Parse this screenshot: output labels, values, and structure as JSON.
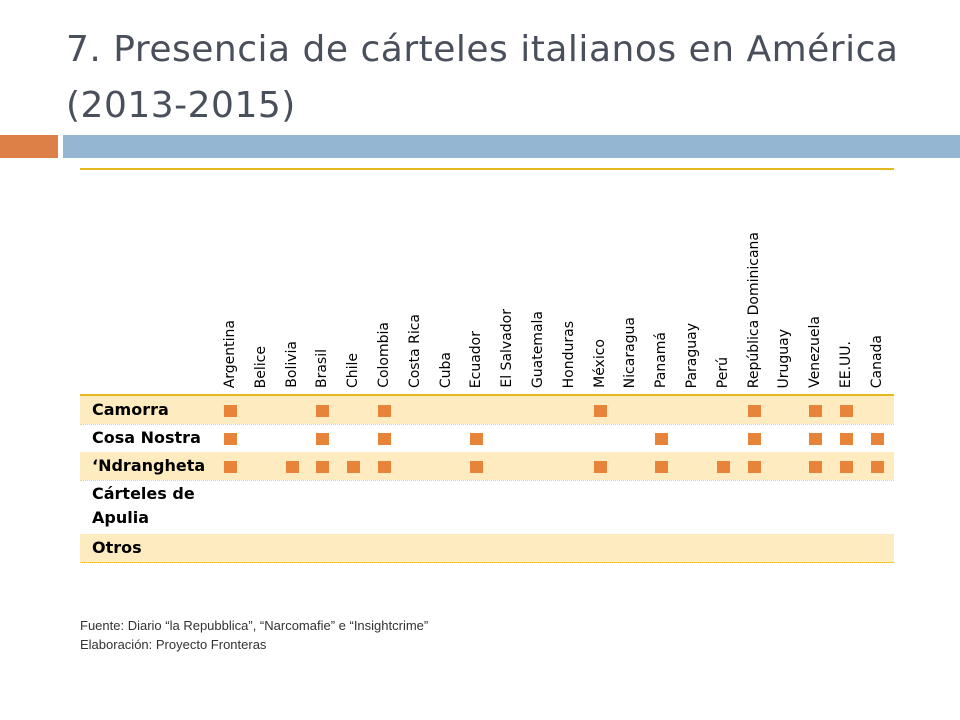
{
  "slide": {
    "title": "7. Presencia de cárteles italianos en América (2013-2015)"
  },
  "accent_colors": {
    "orange_bar": "#dd8047",
    "blue_bar": "#94b6d2",
    "shaded_row": "#feecc0",
    "table_lines": "#e6b91e",
    "marker": "#e8833a"
  },
  "table": {
    "countries": [
      "Argentina",
      "Belice",
      "Bolivia",
      "Brasil",
      "Chile",
      "Colombia",
      "Costa Rica",
      "Cuba",
      "Ecuador",
      "El Salvador",
      "Guatemala",
      "Honduras",
      "México",
      "Nicaragua",
      "Panamá",
      "Paraguay",
      "Perú",
      "República Dominicana",
      "Uruguay",
      "Venezuela",
      "EE.UU.",
      "Canada"
    ],
    "rows": [
      {
        "label": "Camorra",
        "presence": [
          "Argentina",
          "Brasil",
          "Colombia",
          "México",
          "República Dominicana",
          "Venezuela",
          "EE.UU."
        ]
      },
      {
        "label": "Cosa Nostra",
        "presence": [
          "Argentina",
          "Brasil",
          "Colombia",
          "Ecuador",
          "Panamá",
          "República Dominicana",
          "Venezuela",
          "EE.UU.",
          "Canada"
        ]
      },
      {
        "label": "‘Ndrangheta",
        "presence": [
          "Argentina",
          "Bolivia",
          "Brasil",
          "Chile",
          "Colombia",
          "Ecuador",
          "México",
          "Panamá",
          "Perú",
          "República Dominicana",
          "Venezuela",
          "EE.UU.",
          "Canada"
        ]
      },
      {
        "label": "Cárteles de Apulia",
        "presence": []
      },
      {
        "label": "Otros",
        "presence": []
      }
    ]
  },
  "footnote": {
    "source": "Fuente: Diario “la Repubblica”, “Narcomafie” e “Insightcrime”",
    "credit": "Elaboración: Proyecto Fronteras"
  }
}
